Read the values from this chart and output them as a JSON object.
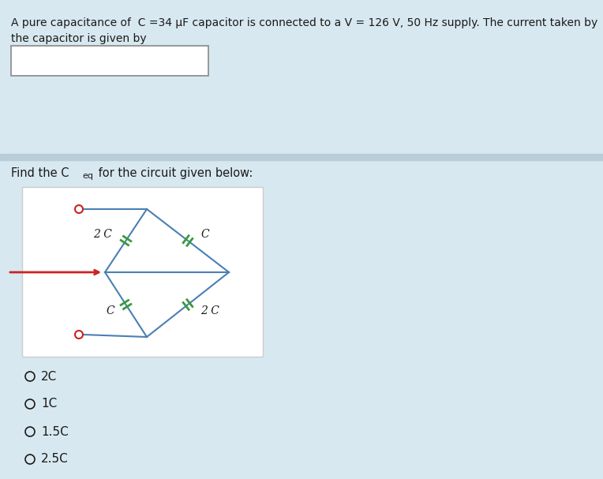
{
  "bg_color": "#d8e8f0",
  "top_panel_bg": "#d8e8f0",
  "bottom_panel_bg": "#d8e8f0",
  "divider_color": "#b8cdd8",
  "text_color": "#1a1a1a",
  "top_text_line1": "A pure capacitance of  C =34 μF capacitor is connected to a V = 126 V, 50 Hz supply. The current taken by",
  "top_text_line2": "the capacitor is given by",
  "circuit_bg": "#ffffff",
  "circuit_line_color": "#4a7fb5",
  "cap_color": "#3a9a3a",
  "arrow_color": "#cc2222",
  "terminal_color": "#cc2222",
  "options": [
    "2C",
    "1C",
    "1.5C",
    "2.5C"
  ],
  "input_box_color": "#ffffff",
  "input_box_border": "#888888"
}
